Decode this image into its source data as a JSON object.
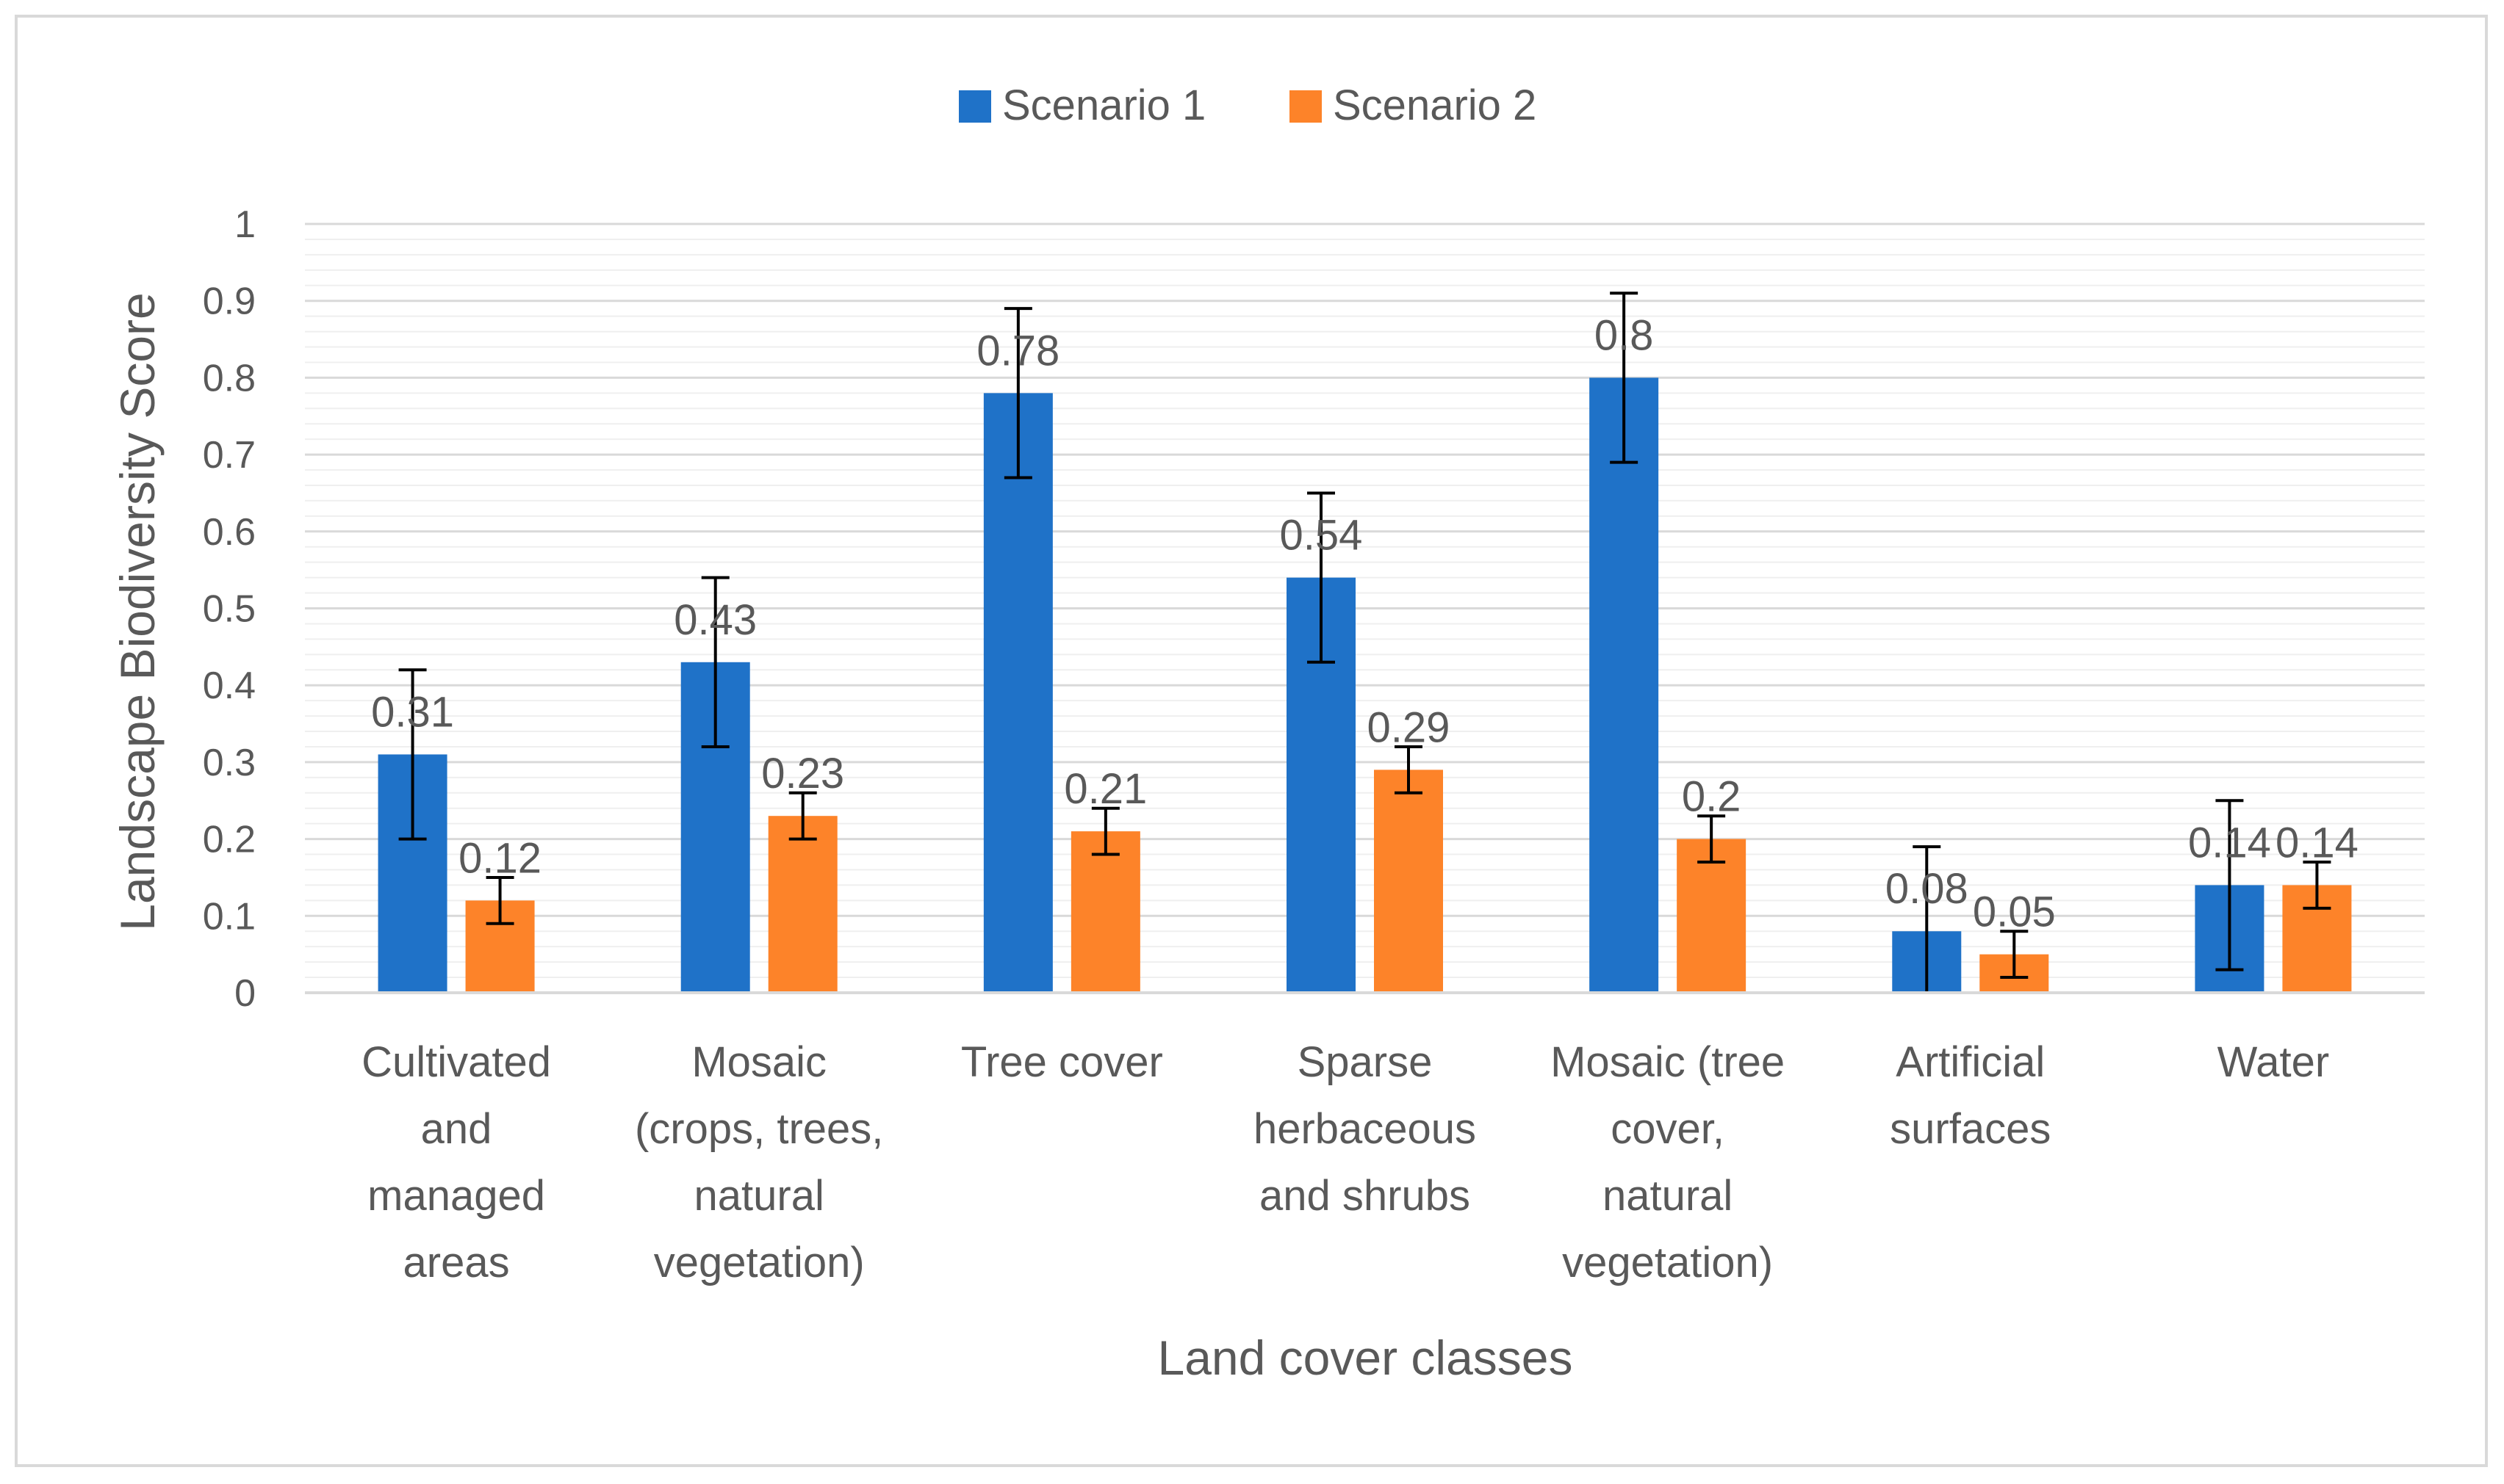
{
  "chart_data": {
    "type": "bar",
    "title": "",
    "xlabel": "Land cover classes",
    "ylabel": "Landscape Biodiversity Score",
    "ylim": [
      0,
      1
    ],
    "yticks": [
      "0",
      "0.1",
      "0.2",
      "0.3",
      "0.4",
      "0.5",
      "0.6",
      "0.7",
      "0.8",
      "0.9",
      "1"
    ],
    "categories": [
      [
        "Cultivated",
        "and",
        "managed",
        "areas"
      ],
      [
        "Mosaic",
        "(crops, trees,",
        "natural",
        "vegetation)"
      ],
      [
        "Tree cover"
      ],
      [
        "Sparse",
        "herbaceous",
        "and shrubs"
      ],
      [
        "Mosaic (tree",
        "cover,",
        "natural",
        "vegetation)"
      ],
      [
        "Artificial",
        "surfaces"
      ],
      [
        "Water"
      ]
    ],
    "legend_position": "top-center",
    "series": [
      {
        "name": "Scenario 1",
        "color": "#1f72c8",
        "values": [
          0.31,
          0.43,
          0.78,
          0.54,
          0.8,
          0.08,
          0.14
        ],
        "labels": [
          "0.31",
          "0.43",
          "0.78",
          "0.54",
          "0.8",
          "0.08",
          "0.14"
        ],
        "error": [
          0.11,
          0.11,
          0.11,
          0.11,
          0.11,
          0.11,
          0.11
        ]
      },
      {
        "name": "Scenario 2",
        "color": "#fd8329",
        "values": [
          0.12,
          0.23,
          0.21,
          0.29,
          0.2,
          0.05,
          0.14
        ],
        "labels": [
          "0.12",
          "0.23",
          "0.21",
          "0.29",
          "0.2",
          "0.05",
          "0.14"
        ],
        "error": [
          0.03,
          0.03,
          0.03,
          0.03,
          0.03,
          0.03,
          0.03
        ]
      }
    ]
  }
}
